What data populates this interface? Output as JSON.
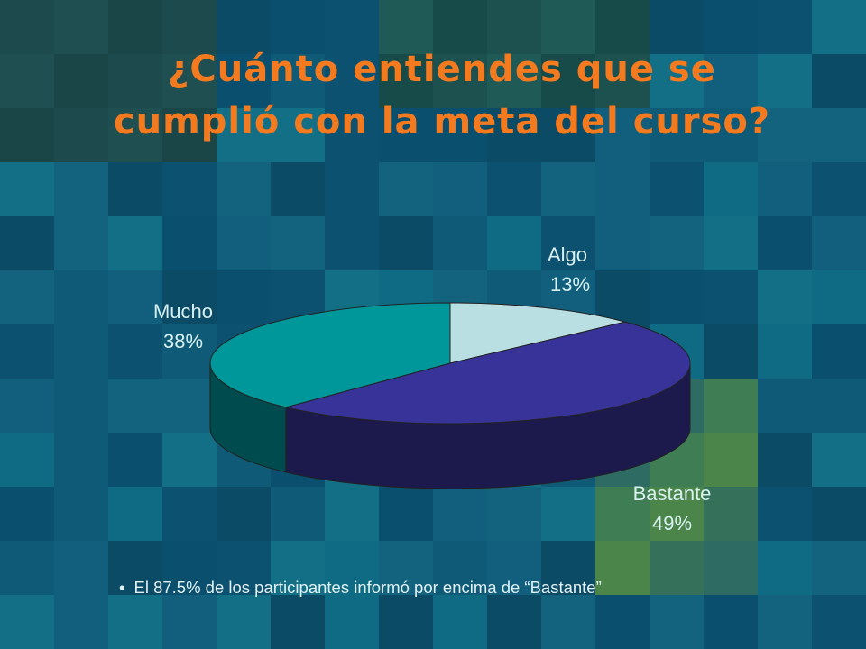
{
  "slide": {
    "title": "¿Cuánto entiendes que se cumplió con la meta del curso?",
    "note_bullet": "•",
    "note": "El 87.5% de los participantes informó por encima de “Bastante”"
  },
  "colors": {
    "title": "#f47a1f",
    "background": "#0f5d78",
    "algo_top": "#b9dfe2",
    "bastante_top": "#373399",
    "bastante_side": "#1c1a4d",
    "mucho_top": "#00979a",
    "mucho_side": "#004b4d"
  },
  "chart_data": {
    "type": "pie",
    "style": "3d",
    "title": "",
    "categories": [
      "Algo",
      "Bastante",
      "Mucho"
    ],
    "values": [
      13,
      49,
      38
    ],
    "labels": [
      "13%",
      "49%",
      "38%"
    ],
    "legend": "none"
  }
}
